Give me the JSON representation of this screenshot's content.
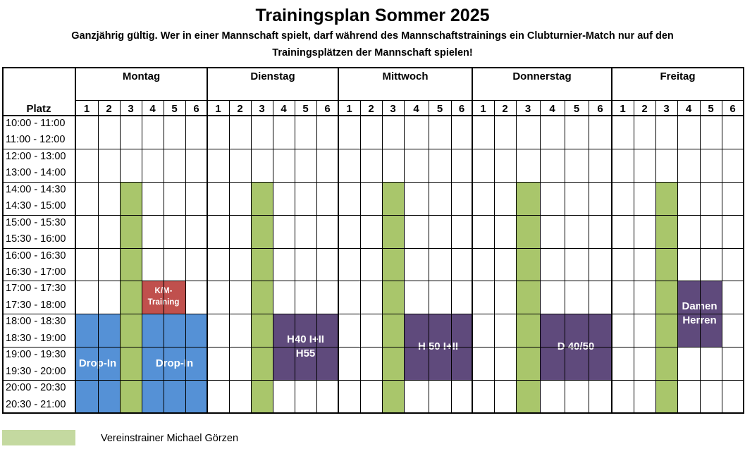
{
  "title": "Trainingsplan Sommer 2025",
  "subtitle_line1": "Ganzjährig gültig. Wer in einer Mannschaft spielt, darf während des Mannschaftstrainings ein Clubturnier-Match nur auf den",
  "subtitle_line2": "Trainingsplätzen der Mannschaft spielen!",
  "platz_label": "Platz",
  "days": [
    "Montag",
    "Dienstag",
    "Mittwoch",
    "Donnerstag",
    "Freitag"
  ],
  "courts": [
    "1",
    "2",
    "3",
    "4",
    "5",
    "6"
  ],
  "times": [
    "10:00 - 11:00",
    "11:00 - 12:00",
    "12:00 - 13:00",
    "13:00 - 14:00",
    "14:00 - 14:30",
    "14:30 - 15:00",
    "15:00 - 15:30",
    "15:30 - 16:00",
    "16:00 - 16:30",
    "16:30 - 17:00",
    "17:00 - 17:30",
    "17:30 - 18:00",
    "18:00 - 18:30",
    "18:30 - 19:00",
    "19:00 - 19:30",
    "19:30 - 20:00",
    "20:00 - 20:30",
    "20:30 - 21:00"
  ],
  "colors": {
    "green": "#a9c66b",
    "blue": "#5591d6",
    "purple": "#5f4a7c",
    "red": "#c0504d",
    "legend_green": "#c4d9a0"
  },
  "blocks": [
    {
      "day": 0,
      "court_start": 3,
      "court_end": 3,
      "row_start": 4,
      "row_end": 17,
      "color": "green",
      "text": ""
    },
    {
      "day": 1,
      "court_start": 3,
      "court_end": 3,
      "row_start": 4,
      "row_end": 17,
      "color": "green",
      "text": ""
    },
    {
      "day": 2,
      "court_start": 3,
      "court_end": 3,
      "row_start": 4,
      "row_end": 17,
      "color": "green",
      "text": ""
    },
    {
      "day": 3,
      "court_start": 3,
      "court_end": 3,
      "row_start": 4,
      "row_end": 17,
      "color": "green",
      "text": ""
    },
    {
      "day": 4,
      "court_start": 3,
      "court_end": 3,
      "row_start": 4,
      "row_end": 17,
      "color": "green",
      "text": ""
    },
    {
      "day": 0,
      "court_start": 1,
      "court_end": 2,
      "row_start": 12,
      "row_end": 17,
      "color": "blue",
      "text": "Drop-In"
    },
    {
      "day": 0,
      "court_start": 4,
      "court_end": 6,
      "row_start": 12,
      "row_end": 17,
      "color": "blue",
      "text": "Drop-In"
    },
    {
      "day": 0,
      "court_start": 4,
      "court_end": 5,
      "row_start": 10,
      "row_end": 11,
      "color": "red",
      "text": "K/M-\nTraining"
    },
    {
      "day": 1,
      "court_start": 4,
      "court_end": 6,
      "row_start": 12,
      "row_end": 15,
      "color": "purple",
      "text": "H40 I+II\nH55"
    },
    {
      "day": 2,
      "court_start": 4,
      "court_end": 6,
      "row_start": 12,
      "row_end": 15,
      "color": "purple",
      "text": "H 50 I+II"
    },
    {
      "day": 3,
      "court_start": 4,
      "court_end": 6,
      "row_start": 12,
      "row_end": 15,
      "color": "purple",
      "text": "D 40/50"
    },
    {
      "day": 4,
      "court_start": 4,
      "court_end": 5,
      "row_start": 10,
      "row_end": 13,
      "color": "purple",
      "text": "Damen\nHerren"
    }
  ],
  "legend": {
    "text": "Vereinstrainer Michael Görzen"
  }
}
